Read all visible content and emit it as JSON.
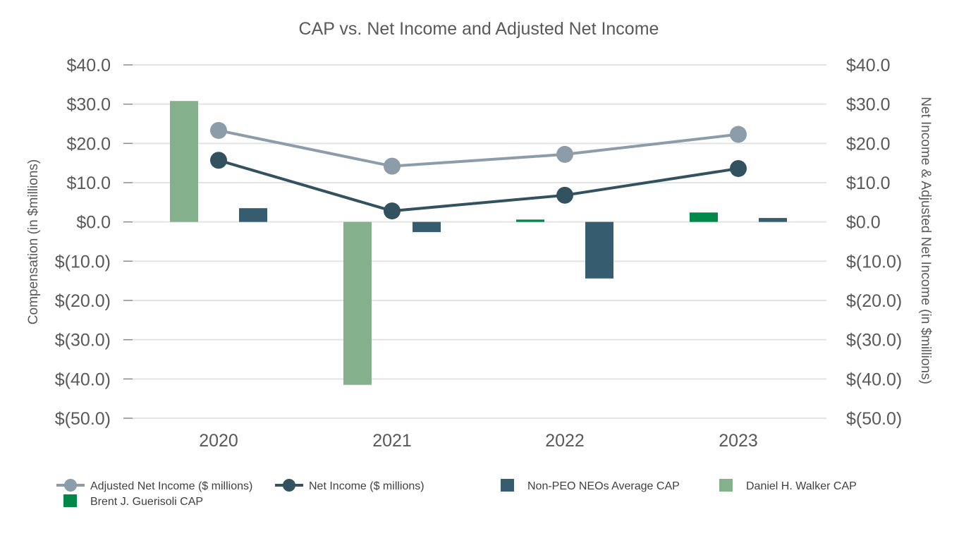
{
  "chart_data": {
    "type": "bar",
    "title": "CAP vs. Net Income and Adjusted Net Income",
    "ylabel": "Compensation (in $millions)",
    "y2label": "Net Income & Adjusted Net Income (in $millions)",
    "ylim": [
      -50,
      40
    ],
    "y2lim": [
      -50,
      40
    ],
    "yticks": [
      40,
      30,
      20,
      10,
      0,
      -10,
      -20,
      -30,
      -40,
      -50
    ],
    "ytick_labels": [
      "$40.0",
      "$30.0",
      "$20.0",
      "$10.0",
      "$0.0",
      "$(10.0)",
      "$(20.0)",
      "$(30.0)",
      "$(40.0)",
      "$(50.0)"
    ],
    "categories": [
      "2020",
      "2021",
      "2022",
      "2023"
    ],
    "bar_series": [
      {
        "name": "Daniel H. Walker CAP",
        "color": "#84b08c",
        "values": [
          30.8,
          -41.5,
          null,
          null
        ]
      },
      {
        "name": "Brent J. Guerisoli CAP",
        "color": "#00884a",
        "values": [
          null,
          null,
          0.6,
          2.4
        ]
      },
      {
        "name": "Non-PEO NEOs Average CAP",
        "color": "#355c6f",
        "values": [
          3.5,
          -2.6,
          -14.4,
          1.0
        ]
      }
    ],
    "line_series": [
      {
        "name": "Adjusted Net Income ($ millions)",
        "color": "#8c9ca8",
        "values": [
          23.3,
          14.2,
          17.2,
          22.3
        ]
      },
      {
        "name": "Net Income ($ millions)",
        "color": "#33525f",
        "values": [
          15.7,
          2.8,
          6.8,
          13.6
        ]
      }
    ],
    "legend": [
      {
        "name": "Adjusted Net Income ($ millions)",
        "kind": "line",
        "color": "#8c9ca8"
      },
      {
        "name": "Net Income ($ millions)",
        "kind": "line",
        "color": "#33525f"
      },
      {
        "name": "Non-PEO NEOs Average CAP",
        "kind": "bar",
        "color": "#355c6f"
      },
      {
        "name": "Daniel H. Walker CAP",
        "kind": "bar",
        "color": "#84b08c"
      },
      {
        "name": "Brent J. Guerisoli CAP",
        "kind": "bar",
        "color": "#00884a"
      }
    ],
    "legend_position": "bottom"
  }
}
